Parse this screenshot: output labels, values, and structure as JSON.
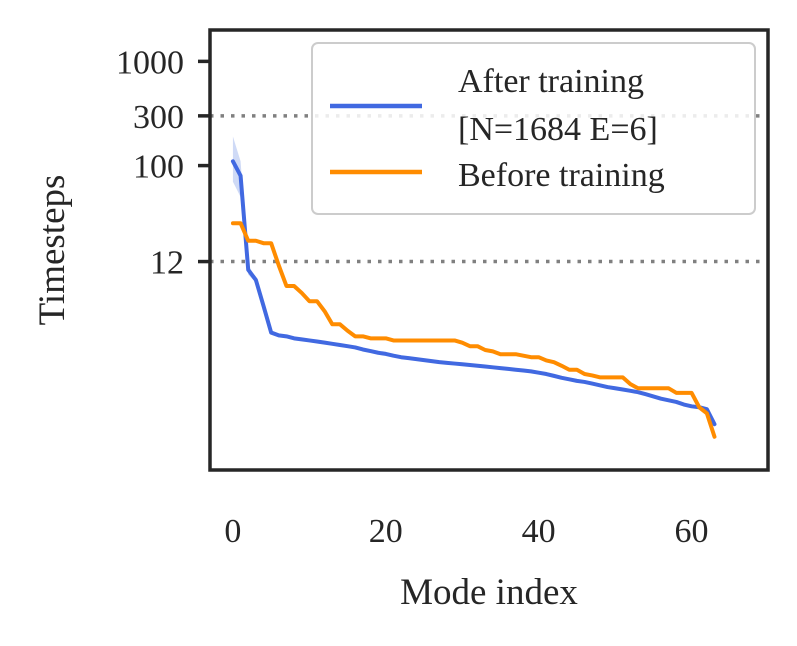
{
  "chart_data": {
    "type": "line",
    "title": "",
    "xlabel": "Mode index",
    "ylabel": "Timesteps",
    "xscale": "linear",
    "yscale": "log",
    "xlim": [
      -3,
      70
    ],
    "ylim": [
      0.12,
      2000
    ],
    "xticks": [
      0,
      20,
      40,
      60
    ],
    "xtick_labels": [
      "0",
      "20",
      "40",
      "60"
    ],
    "yticks": [
      12,
      100,
      300,
      1000
    ],
    "ytick_labels": [
      "12",
      "100",
      "300",
      "1000"
    ],
    "reference_lines": [
      {
        "y": 300,
        "style": "dotted",
        "color": "#808080"
      },
      {
        "y": 12,
        "style": "dotted",
        "color": "#808080"
      }
    ],
    "legend": {
      "position": "top-right",
      "entries": [
        {
          "label_lines": [
            "After training",
            "[N=1684 E=6]"
          ],
          "color": "#4169e1"
        },
        {
          "label_lines": [
            "Before training"
          ],
          "color": "#ff8c00"
        }
      ]
    },
    "series": [
      {
        "name": "After training [N=1684 E=6]",
        "color": "#4169e1",
        "band_color": "#c7d3f5",
        "x": [
          0,
          1,
          2,
          3,
          4,
          5,
          6,
          7,
          8,
          9,
          10,
          11,
          12,
          13,
          14,
          15,
          16,
          17,
          18,
          19,
          20,
          21,
          22,
          23,
          24,
          25,
          26,
          27,
          28,
          29,
          30,
          31,
          32,
          33,
          34,
          35,
          36,
          37,
          38,
          39,
          40,
          41,
          42,
          43,
          44,
          45,
          46,
          47,
          48,
          49,
          50,
          51,
          52,
          53,
          54,
          55,
          56,
          57,
          58,
          59,
          60,
          61,
          62,
          63
        ],
        "values": [
          110,
          80,
          10,
          8,
          4.5,
          2.5,
          2.35,
          2.3,
          2.2,
          2.15,
          2.1,
          2.05,
          2.0,
          1.95,
          1.9,
          1.85,
          1.8,
          1.72,
          1.66,
          1.6,
          1.56,
          1.5,
          1.45,
          1.42,
          1.39,
          1.36,
          1.33,
          1.3,
          1.28,
          1.26,
          1.24,
          1.22,
          1.2,
          1.18,
          1.16,
          1.14,
          1.12,
          1.1,
          1.08,
          1.06,
          1.03,
          1.0,
          0.96,
          0.92,
          0.89,
          0.86,
          0.84,
          0.81,
          0.78,
          0.75,
          0.73,
          0.71,
          0.69,
          0.67,
          0.64,
          0.61,
          0.58,
          0.56,
          0.54,
          0.51,
          0.49,
          0.48,
          0.46,
          0.33
        ],
        "band_upper": [
          190,
          110,
          11,
          8.5,
          4.6,
          2.55
        ],
        "band_lower": [
          70,
          50,
          9,
          7.5,
          4.4,
          2.45
        ]
      },
      {
        "name": "Before training",
        "color": "#ff8c00",
        "x": [
          0,
          1,
          2,
          3,
          4,
          5,
          6,
          7,
          8,
          9,
          10,
          11,
          12,
          13,
          14,
          15,
          16,
          17,
          18,
          19,
          20,
          21,
          22,
          23,
          24,
          25,
          26,
          27,
          28,
          29,
          30,
          31,
          32,
          33,
          34,
          35,
          36,
          37,
          38,
          39,
          40,
          41,
          42,
          43,
          44,
          45,
          46,
          47,
          48,
          49,
          50,
          51,
          52,
          53,
          54,
          55,
          56,
          57,
          58,
          59,
          60,
          61,
          62,
          63
        ],
        "values": [
          28,
          28,
          19,
          19,
          18,
          18,
          11,
          7,
          7,
          6,
          5,
          5,
          4,
          3,
          3,
          2.6,
          2.3,
          2.3,
          2.2,
          2.2,
          2.2,
          2.1,
          2.1,
          2.1,
          2.1,
          2.1,
          2.1,
          2.1,
          2.1,
          2.1,
          2.0,
          1.85,
          1.85,
          1.7,
          1.65,
          1.55,
          1.55,
          1.55,
          1.5,
          1.45,
          1.45,
          1.35,
          1.3,
          1.2,
          1.1,
          1.1,
          1.0,
          0.97,
          0.93,
          0.93,
          0.93,
          0.93,
          0.8,
          0.73,
          0.73,
          0.73,
          0.73,
          0.73,
          0.66,
          0.66,
          0.66,
          0.48,
          0.42,
          0.25
        ]
      }
    ]
  }
}
